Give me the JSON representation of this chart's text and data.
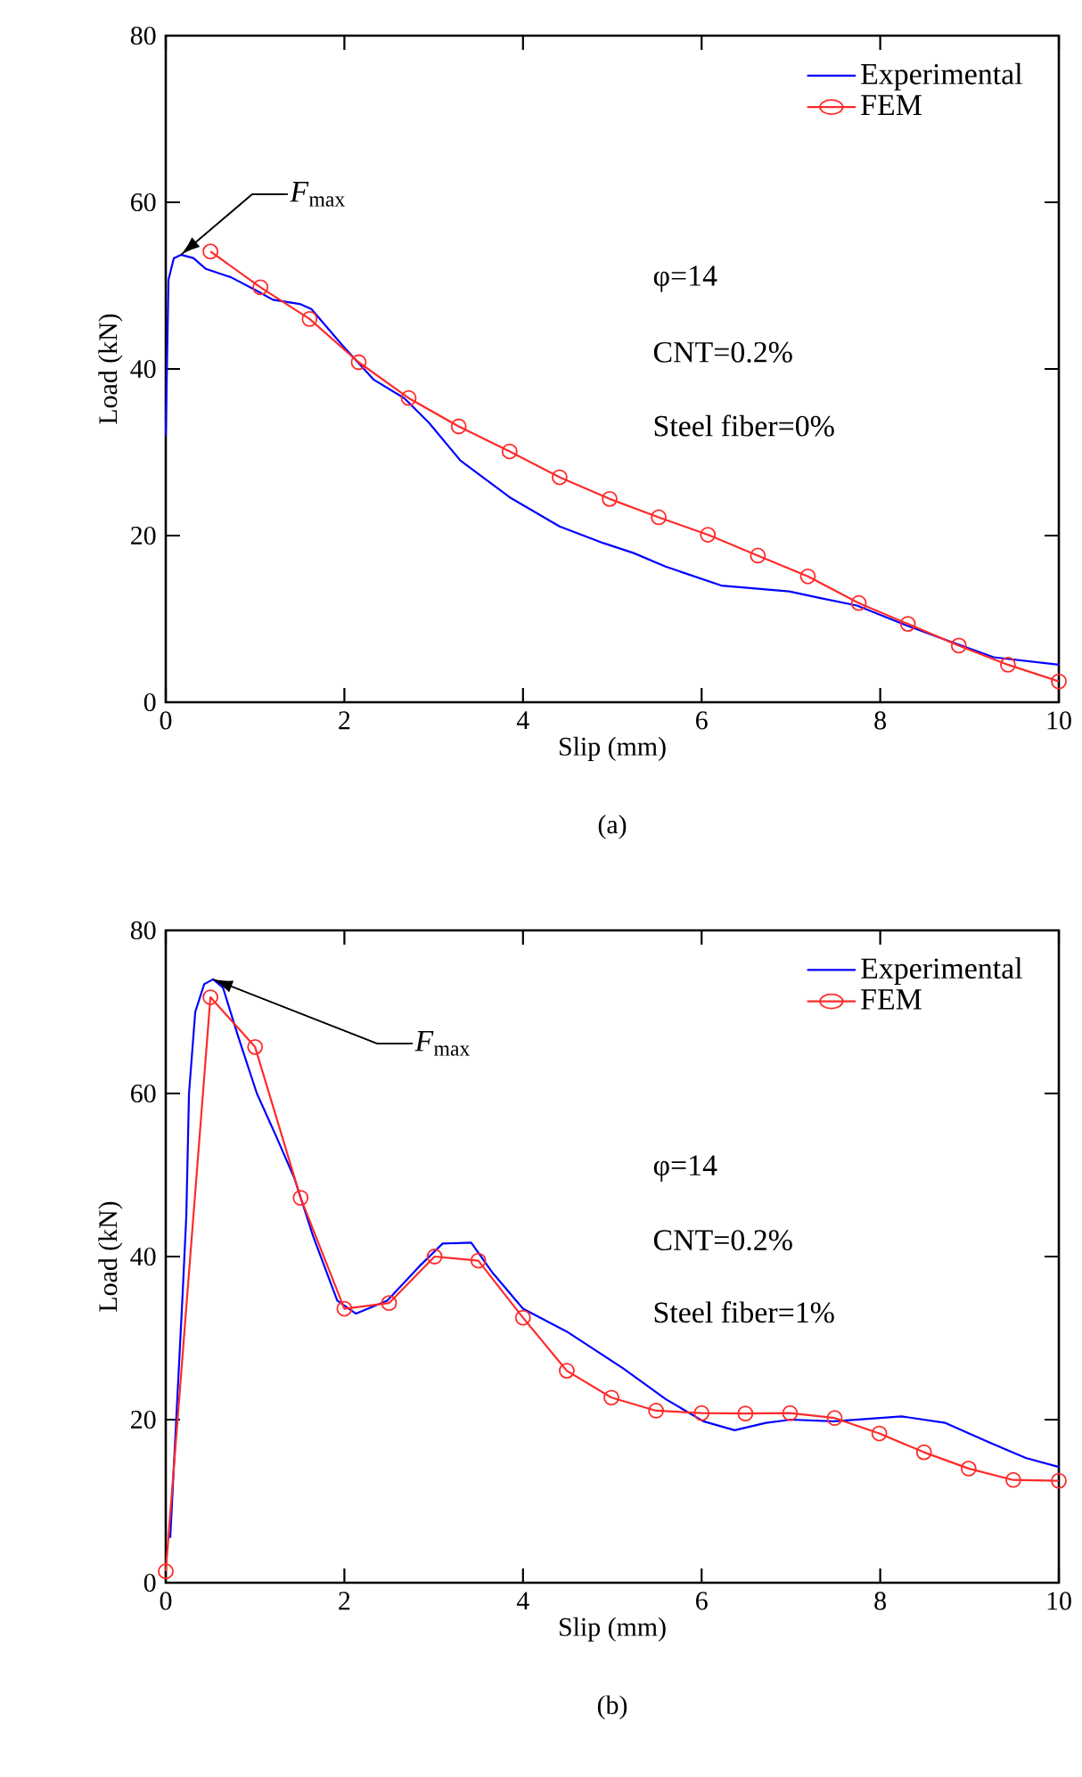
{
  "chart_data": [
    {
      "type": "line",
      "title": "(a)",
      "xlabel": "Slip (mm)",
      "ylabel": "Load (kN)",
      "xlim": [
        0,
        10
      ],
      "ylim": [
        0,
        80
      ],
      "xticks": [
        0,
        2,
        4,
        6,
        8,
        10
      ],
      "yticks": [
        0,
        20,
        40,
        60,
        80
      ],
      "legend": "top right",
      "series": [
        {
          "name": "Experimental",
          "color": "#0000ff",
          "x": [
            0,
            0.03,
            0.09,
            0.17,
            0.31,
            0.45,
            0.73,
            1.0,
            1.2,
            1.5,
            1.63,
            1.98,
            2.33,
            2.67,
            2.95,
            3.3,
            3.85,
            4.41,
            4.9,
            5.24,
            5.59,
            6.22,
            6.98,
            7.33,
            7.74,
            8.3,
            8.78,
            9.27,
            10
          ],
          "values": [
            32,
            50.7,
            53.3,
            53.7,
            53.3,
            52,
            51,
            49.5,
            48.3,
            47.8,
            47.2,
            42.8,
            38.7,
            36.5,
            33.5,
            29,
            24.6,
            21.1,
            19.1,
            17.9,
            16.3,
            14,
            13.3,
            12.5,
            11.6,
            9.2,
            7.3,
            5.4,
            4.5
          ]
        },
        {
          "name": "FEM",
          "color": "#ff2a2a",
          "marker": "circle",
          "x": [
            0.5,
            1.06,
            1.61,
            2.16,
            2.72,
            3.28,
            3.85,
            4.41,
            4.97,
            5.52,
            6.07,
            6.63,
            7.19,
            7.76,
            8.31,
            8.88,
            9.43,
            10
          ],
          "values": [
            54.1,
            49.8,
            46,
            40.8,
            36.5,
            33.1,
            30.1,
            27,
            24.4,
            22.2,
            20.1,
            17.6,
            15.1,
            11.9,
            9.4,
            6.8,
            4.5,
            2.5
          ]
        }
      ],
      "annotations": [
        {
          "text": "*F*$_{max}$",
          "x": 0.17,
          "y": 53.7
        },
        "φ=14",
        "CNT=0.2%",
        "Steel fiber=0%"
      ]
    },
    {
      "type": "line",
      "title": "(b)",
      "xlabel": "Slip (mm)",
      "ylabel": "Load (kN)",
      "xlim": [
        0,
        10
      ],
      "ylim": [
        0,
        80
      ],
      "xticks": [
        0,
        2,
        4,
        6,
        8,
        10
      ],
      "yticks": [
        0,
        20,
        40,
        60,
        80
      ],
      "legend": "top right",
      "series": [
        {
          "name": "Experimental",
          "color": "#0000ff",
          "x": [
            0.05,
            0.12,
            0.19,
            0.23,
            0.26,
            0.33,
            0.43,
            0.53,
            0.64,
            0.81,
            1.02,
            1.23,
            1.44,
            1.65,
            1.92,
            2.13,
            2.48,
            2.83,
            3.1,
            3.42,
            3.66,
            4.0,
            4.49,
            5.12,
            5.6,
            6.02,
            6.37,
            6.72,
            7.0,
            7.48,
            8.24,
            8.73,
            9.22,
            9.63,
            10
          ],
          "values": [
            5.5,
            20.6,
            35.7,
            45,
            60,
            70,
            73.4,
            74,
            73,
            67,
            60,
            54.9,
            49.6,
            42.5,
            34.6,
            33,
            34.6,
            38.7,
            41.6,
            41.7,
            38,
            33.6,
            30.8,
            26.3,
            22.5,
            19.8,
            18.7,
            19.6,
            20,
            19.8,
            20.4,
            19.6,
            17.2,
            15.3,
            14.2
          ]
        },
        {
          "name": "FEM",
          "color": "#ff2a2a",
          "marker": "circle",
          "x": [
            0,
            0.5,
            1.0,
            1.51,
            2.0,
            2.5,
            3.01,
            3.5,
            4.0,
            4.49,
            4.99,
            5.49,
            6.0,
            6.49,
            6.99,
            7.49,
            7.99,
            8.49,
            8.99,
            9.49,
            10
          ],
          "values": [
            1.4,
            71.8,
            65.7,
            47.2,
            33.6,
            34.3,
            40,
            39.5,
            32.5,
            26,
            22.7,
            21.1,
            20.8,
            20.75,
            20.8,
            20.2,
            18.3,
            16,
            14,
            12.6,
            12.5
          ]
        }
      ],
      "annotations": [
        {
          "text": "*F*$_{max}$",
          "x": 0.53,
          "y": 74
        },
        "φ=14",
        "CNT=0.2%",
        "Steel fiber=1%"
      ]
    }
  ]
}
